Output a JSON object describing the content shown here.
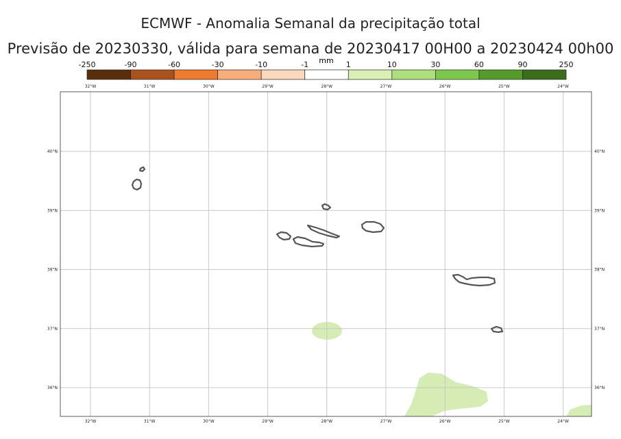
{
  "header": {
    "title": "ECMWF - Anomalia Semanal da precipitação total",
    "subtitle": "Previsão de 20230330, válida para semana de 20230417 00H00 a 20230424 00h00"
  },
  "legend": {
    "unit": "mm",
    "negative_ticks": [
      "-250",
      "-90",
      "-60",
      "-30",
      "-10",
      "-1"
    ],
    "positive_ticks": [
      "1",
      "10",
      "30",
      "60",
      "90",
      "250"
    ],
    "colors": [
      "#5a2d0c",
      "#a9521e",
      "#f07b2e",
      "#f8ae7b",
      "#fcd9bd",
      "#ffffff",
      "#d9f0b4",
      "#aede7d",
      "#7cc74c",
      "#559b2c",
      "#3b6d1a"
    ]
  },
  "map": {
    "lon_labels": [
      "32°W",
      "31°W",
      "30°W",
      "29°W",
      "28°W",
      "27°W",
      "26°W",
      "25°W",
      "24°W"
    ],
    "lat_labels": [
      "40°N",
      "39°N",
      "38°N",
      "37°N",
      "36°N"
    ],
    "grid": true,
    "islands": [
      "Corvo",
      "Flores",
      "Graciosa",
      "Terceira",
      "Faial",
      "Pico",
      "São Jorge",
      "São Miguel",
      "Santa Maria"
    ],
    "anomaly_fill_color": "#d5ecb4",
    "coastline_color": "#555555"
  }
}
